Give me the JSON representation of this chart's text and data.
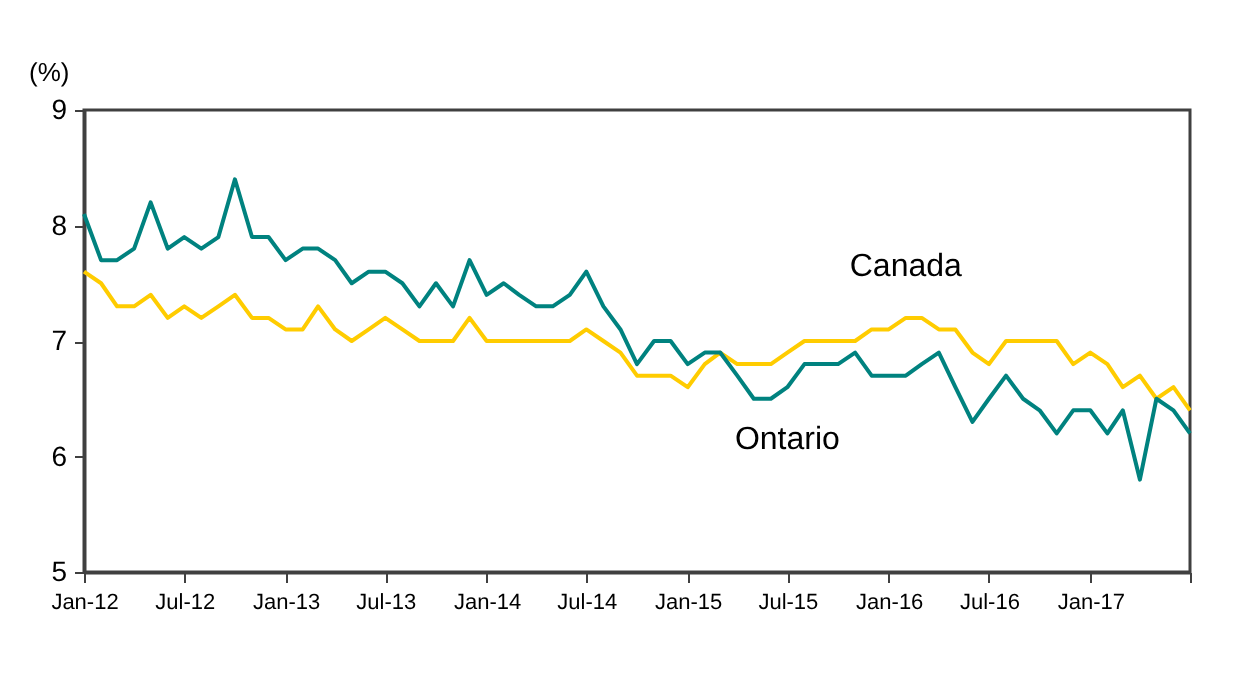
{
  "chart_data": {
    "type": "line",
    "ylabel": "(%)",
    "x": [
      "2012-01",
      "2012-02",
      "2012-03",
      "2012-04",
      "2012-05",
      "2012-06",
      "2012-07",
      "2012-08",
      "2012-09",
      "2012-10",
      "2012-11",
      "2012-12",
      "2013-01",
      "2013-02",
      "2013-03",
      "2013-04",
      "2013-05",
      "2013-06",
      "2013-07",
      "2013-08",
      "2013-09",
      "2013-10",
      "2013-11",
      "2013-12",
      "2014-01",
      "2014-02",
      "2014-03",
      "2014-04",
      "2014-05",
      "2014-06",
      "2014-07",
      "2014-08",
      "2014-09",
      "2014-10",
      "2014-11",
      "2014-12",
      "2015-01",
      "2015-02",
      "2015-03",
      "2015-04",
      "2015-05",
      "2015-06",
      "2015-07",
      "2015-08",
      "2015-09",
      "2015-10",
      "2015-11",
      "2015-12",
      "2016-01",
      "2016-02",
      "2016-03",
      "2016-04",
      "2016-05",
      "2016-06",
      "2016-07",
      "2016-08",
      "2016-09",
      "2016-10",
      "2016-11",
      "2016-12",
      "2017-01",
      "2017-02",
      "2017-03",
      "2017-04",
      "2017-05",
      "2017-06",
      "2017-07"
    ],
    "series": [
      {
        "name": "Canada",
        "color": "#ffcc00",
        "values": [
          7.6,
          7.5,
          7.3,
          7.3,
          7.4,
          7.2,
          7.3,
          7.2,
          7.3,
          7.4,
          7.2,
          7.2,
          7.1,
          7.1,
          7.3,
          7.1,
          7.0,
          7.1,
          7.2,
          7.1,
          7.0,
          7.0,
          7.0,
          7.2,
          7.0,
          7.0,
          7.0,
          7.0,
          7.0,
          7.0,
          7.1,
          7.0,
          6.9,
          6.7,
          6.7,
          6.7,
          6.6,
          6.8,
          6.9,
          6.8,
          6.8,
          6.8,
          6.9,
          7.0,
          7.0,
          7.0,
          7.0,
          7.1,
          7.1,
          7.2,
          7.2,
          7.1,
          7.1,
          6.9,
          6.8,
          7.0,
          7.0,
          7.0,
          7.0,
          6.8,
          6.9,
          6.8,
          6.6,
          6.7,
          6.5,
          6.6,
          6.4
        ]
      },
      {
        "name": "Ontario",
        "color": "#00827f",
        "values": [
          8.1,
          7.7,
          7.7,
          7.8,
          8.2,
          7.8,
          7.9,
          7.8,
          7.9,
          8.4,
          7.9,
          7.9,
          7.7,
          7.8,
          7.8,
          7.7,
          7.5,
          7.6,
          7.6,
          7.5,
          7.3,
          7.5,
          7.3,
          7.7,
          7.4,
          7.5,
          7.4,
          7.3,
          7.3,
          7.4,
          7.6,
          7.3,
          7.1,
          6.8,
          7.0,
          7.0,
          6.8,
          6.9,
          6.9,
          6.7,
          6.5,
          6.5,
          6.6,
          6.8,
          6.8,
          6.8,
          6.9,
          6.7,
          6.7,
          6.7,
          6.8,
          6.9,
          6.6,
          6.3,
          6.5,
          6.7,
          6.5,
          6.4,
          6.2,
          6.4,
          6.4,
          6.2,
          6.4,
          5.8,
          6.5,
          6.4,
          6.2
        ]
      }
    ],
    "xlim": [
      "2012-01",
      "2017-07"
    ],
    "xticks": [
      {
        "value": "2012-01",
        "label": "Jan-12"
      },
      {
        "value": "2012-07",
        "label": "Jul-12"
      },
      {
        "value": "2013-01",
        "label": "Jan-13"
      },
      {
        "value": "2013-07",
        "label": "Jul-13"
      },
      {
        "value": "2014-01",
        "label": "Jan-14"
      },
      {
        "value": "2014-07",
        "label": "Jul-14"
      },
      {
        "value": "2015-01",
        "label": "Jan-15"
      },
      {
        "value": "2015-07",
        "label": "Jul-15"
      },
      {
        "value": "2016-01",
        "label": "Jan-16"
      },
      {
        "value": "2016-07",
        "label": "Jul-16"
      },
      {
        "value": "2017-01",
        "label": "Jan-17"
      },
      {
        "value": "2017-07",
        "label": null
      }
    ],
    "ylim": [
      5,
      9
    ],
    "yticks": [
      5,
      6,
      7,
      8,
      9
    ],
    "grid": false,
    "legend": false,
    "marker": "none",
    "line_style": "solid"
  }
}
